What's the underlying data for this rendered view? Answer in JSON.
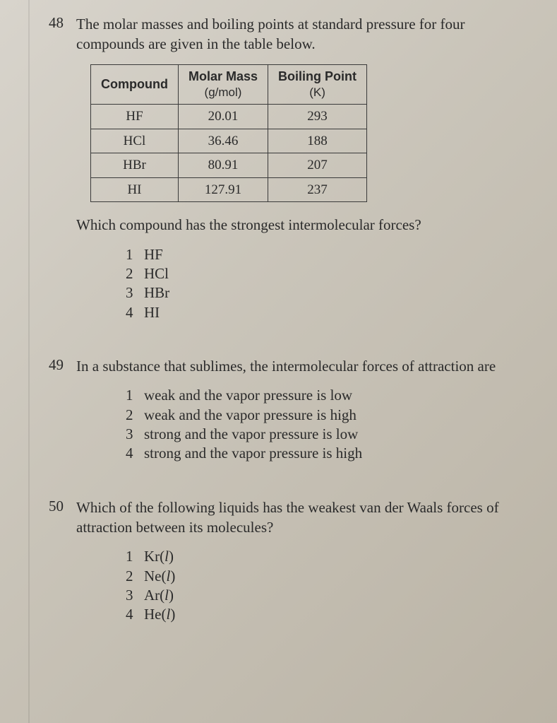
{
  "q48": {
    "number": "48",
    "stem": "The molar masses and boiling points at standard pressure for four compounds are given in the table below.",
    "table": {
      "headers": [
        {
          "main": "Compound",
          "sub": ""
        },
        {
          "main": "Molar Mass",
          "sub": "(g/mol)"
        },
        {
          "main": "Boiling Point",
          "sub": "(K)"
        }
      ],
      "rows": [
        [
          "HF",
          "20.01",
          "293"
        ],
        [
          "HCl",
          "36.46",
          "188"
        ],
        [
          "HBr",
          "80.91",
          "207"
        ],
        [
          "HI",
          "127.91",
          "237"
        ]
      ],
      "border_color": "#3a3a3a",
      "header_font": "Arial",
      "cell_font": "Georgia"
    },
    "followup": "Which compound has the strongest intermolecular forces?",
    "choices": [
      {
        "n": "1",
        "text": "HF"
      },
      {
        "n": "2",
        "text": "HCl"
      },
      {
        "n": "3",
        "text": "HBr"
      },
      {
        "n": "4",
        "text": "HI"
      }
    ]
  },
  "q49": {
    "number": "49",
    "stem": "In a substance that sublimes, the intermolecular forces of attraction are",
    "choices": [
      {
        "n": "1",
        "text": "weak and the vapor pressure is low"
      },
      {
        "n": "2",
        "text": "weak and the vapor pressure is high"
      },
      {
        "n": "3",
        "text": "strong and the vapor pressure is low"
      },
      {
        "n": "4",
        "text": "strong and the vapor pressure is high"
      }
    ]
  },
  "q50": {
    "number": "50",
    "stem": "Which of the following liquids has the weakest van der Waals forces of attraction between its molecules?",
    "choices": [
      {
        "n": "1",
        "sym": "Kr",
        "state": "l"
      },
      {
        "n": "2",
        "sym": "Ne",
        "state": "l"
      },
      {
        "n": "3",
        "sym": "Ar",
        "state": "l"
      },
      {
        "n": "4",
        "sym": "He",
        "state": "l"
      }
    ]
  },
  "style": {
    "text_color": "#2a2a2a",
    "bg_gradient": [
      "#d8d4cc",
      "#cac5ba",
      "#bab3a5"
    ],
    "body_fontsize": 21,
    "table_fontsize": 19
  }
}
